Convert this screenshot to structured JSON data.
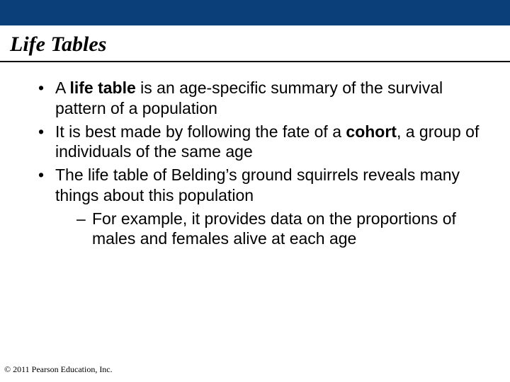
{
  "colors": {
    "top_band": "#0b3f7a",
    "background": "#ffffff",
    "text": "#000000",
    "rule": "#000000"
  },
  "title": {
    "text": "Life Tables",
    "font_family": "Times New Roman",
    "font_style": "italic",
    "font_weight": "bold",
    "font_size_pt": 22
  },
  "bullets": [
    {
      "runs": [
        {
          "text": "A ",
          "bold": false
        },
        {
          "text": "life table",
          "bold": true
        },
        {
          "text": " is an age-specific summary of the survival pattern of a population",
          "bold": false
        }
      ]
    },
    {
      "runs": [
        {
          "text": "It is best made by following the fate of a ",
          "bold": false
        },
        {
          "text": "cohort",
          "bold": true
        },
        {
          "text": ", a group of individuals of the same age",
          "bold": false
        }
      ]
    },
    {
      "runs": [
        {
          "text": "The life table of Belding’s ground squirrels reveals many things about this population",
          "bold": false
        }
      ],
      "sub": [
        {
          "text": "For example, it provides data on the proportions of males and females alive at each age"
        }
      ]
    }
  ],
  "body_font": {
    "family": "Arial",
    "size_pt": 17
  },
  "copyright": "© 2011 Pearson Education, Inc."
}
